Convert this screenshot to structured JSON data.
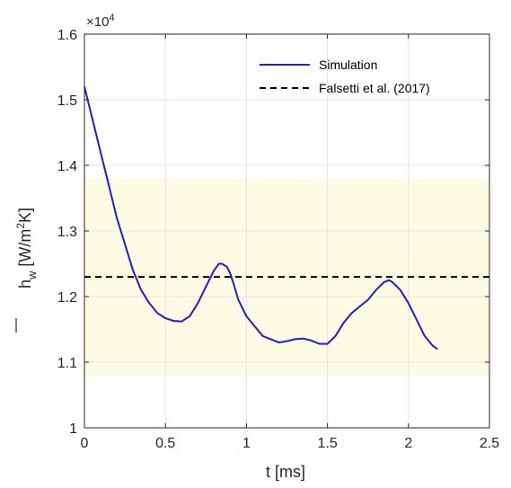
{
  "chart_data": {
    "type": "line",
    "title": "",
    "xlabel": "t [ms]",
    "ylabel": {
      "base": "h",
      "subscript": "w",
      "unit_open": " [W/m",
      "unit_sup": "2",
      "unit_close": "K]"
    },
    "y_exponent_label": {
      "prefix": "×10",
      "power": "4"
    },
    "xlim": [
      0,
      2.5
    ],
    "ylim": [
      1.0,
      1.6
    ],
    "xticks": [
      0,
      0.5,
      1,
      1.5,
      2,
      2.5
    ],
    "xtick_labels": [
      "0",
      "0.5",
      "1",
      "1.5",
      "2",
      "2.5"
    ],
    "yticks": [
      1.0,
      1.1,
      1.2,
      1.3,
      1.4,
      1.5,
      1.6
    ],
    "ytick_labels": [
      "1",
      "1.1",
      "1.2",
      "1.3",
      "1.4",
      "1.5",
      "1.6"
    ],
    "grid": true,
    "legend_position": "top-right",
    "band": {
      "y_from": 1.08,
      "y_to": 1.38,
      "color": "#fdfbe3"
    },
    "series": [
      {
        "name": "Simulation",
        "style": "solid",
        "color": "#1f1fc8",
        "x": [
          0.0,
          0.02,
          0.05,
          0.08,
          0.1,
          0.15,
          0.2,
          0.25,
          0.3,
          0.35,
          0.4,
          0.45,
          0.5,
          0.55,
          0.6,
          0.65,
          0.7,
          0.75,
          0.8,
          0.83,
          0.85,
          0.88,
          0.9,
          0.92,
          0.95,
          1.0,
          1.05,
          1.1,
          1.15,
          1.2,
          1.25,
          1.3,
          1.35,
          1.4,
          1.45,
          1.5,
          1.55,
          1.6,
          1.65,
          1.7,
          1.75,
          1.8,
          1.85,
          1.88,
          1.9,
          1.95,
          2.0,
          2.05,
          2.1,
          2.15,
          2.18
        ],
        "y": [
          1.52,
          1.5,
          1.47,
          1.44,
          1.42,
          1.37,
          1.32,
          1.28,
          1.24,
          1.21,
          1.19,
          1.175,
          1.167,
          1.163,
          1.162,
          1.17,
          1.19,
          1.215,
          1.24,
          1.25,
          1.25,
          1.245,
          1.235,
          1.22,
          1.195,
          1.17,
          1.155,
          1.14,
          1.135,
          1.13,
          1.132,
          1.135,
          1.136,
          1.133,
          1.128,
          1.128,
          1.14,
          1.16,
          1.175,
          1.185,
          1.195,
          1.21,
          1.222,
          1.225,
          1.222,
          1.21,
          1.19,
          1.165,
          1.14,
          1.125,
          1.12
        ]
      },
      {
        "name": "Falsetti et al. (2017)",
        "style": "dashed",
        "color": "#000000",
        "x": [
          0,
          2.5
        ],
        "y": [
          1.23,
          1.23
        ]
      }
    ]
  }
}
